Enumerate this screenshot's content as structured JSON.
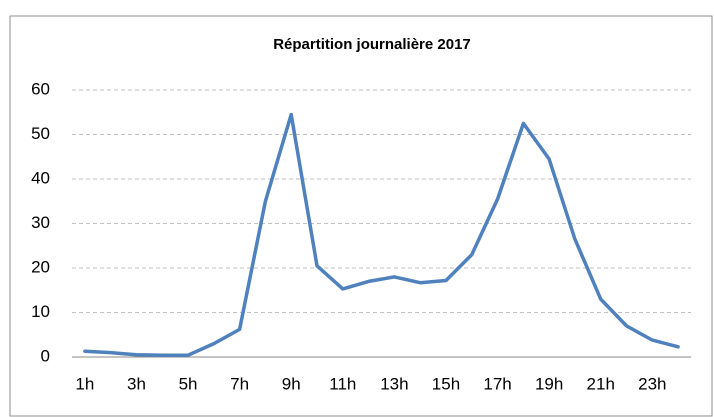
{
  "chart_data": {
    "type": "line",
    "title": "Répartition journalière 2017",
    "categories": [
      "1h",
      null,
      "3h",
      null,
      "5h",
      null,
      "7h",
      null,
      "9h",
      null,
      "11h",
      null,
      "13h",
      null,
      "15h",
      null,
      "17h",
      null,
      "19h",
      null,
      "21h",
      null,
      "23h",
      null
    ],
    "series": [
      {
        "name": "2017",
        "color": "#4f81bd",
        "values": [
          1.3,
          1.0,
          0.5,
          0.4,
          0.4,
          3,
          6.2,
          35,
          54.5,
          20.5,
          15.3,
          17,
          18,
          16.7,
          17.2,
          23,
          35.5,
          52.5,
          44.5,
          26.5,
          13,
          7,
          3.8,
          2.3
        ]
      }
    ],
    "ylim": [
      0,
      60
    ],
    "yticks": [
      0,
      10,
      20,
      30,
      40,
      50,
      60
    ],
    "grid": true
  }
}
